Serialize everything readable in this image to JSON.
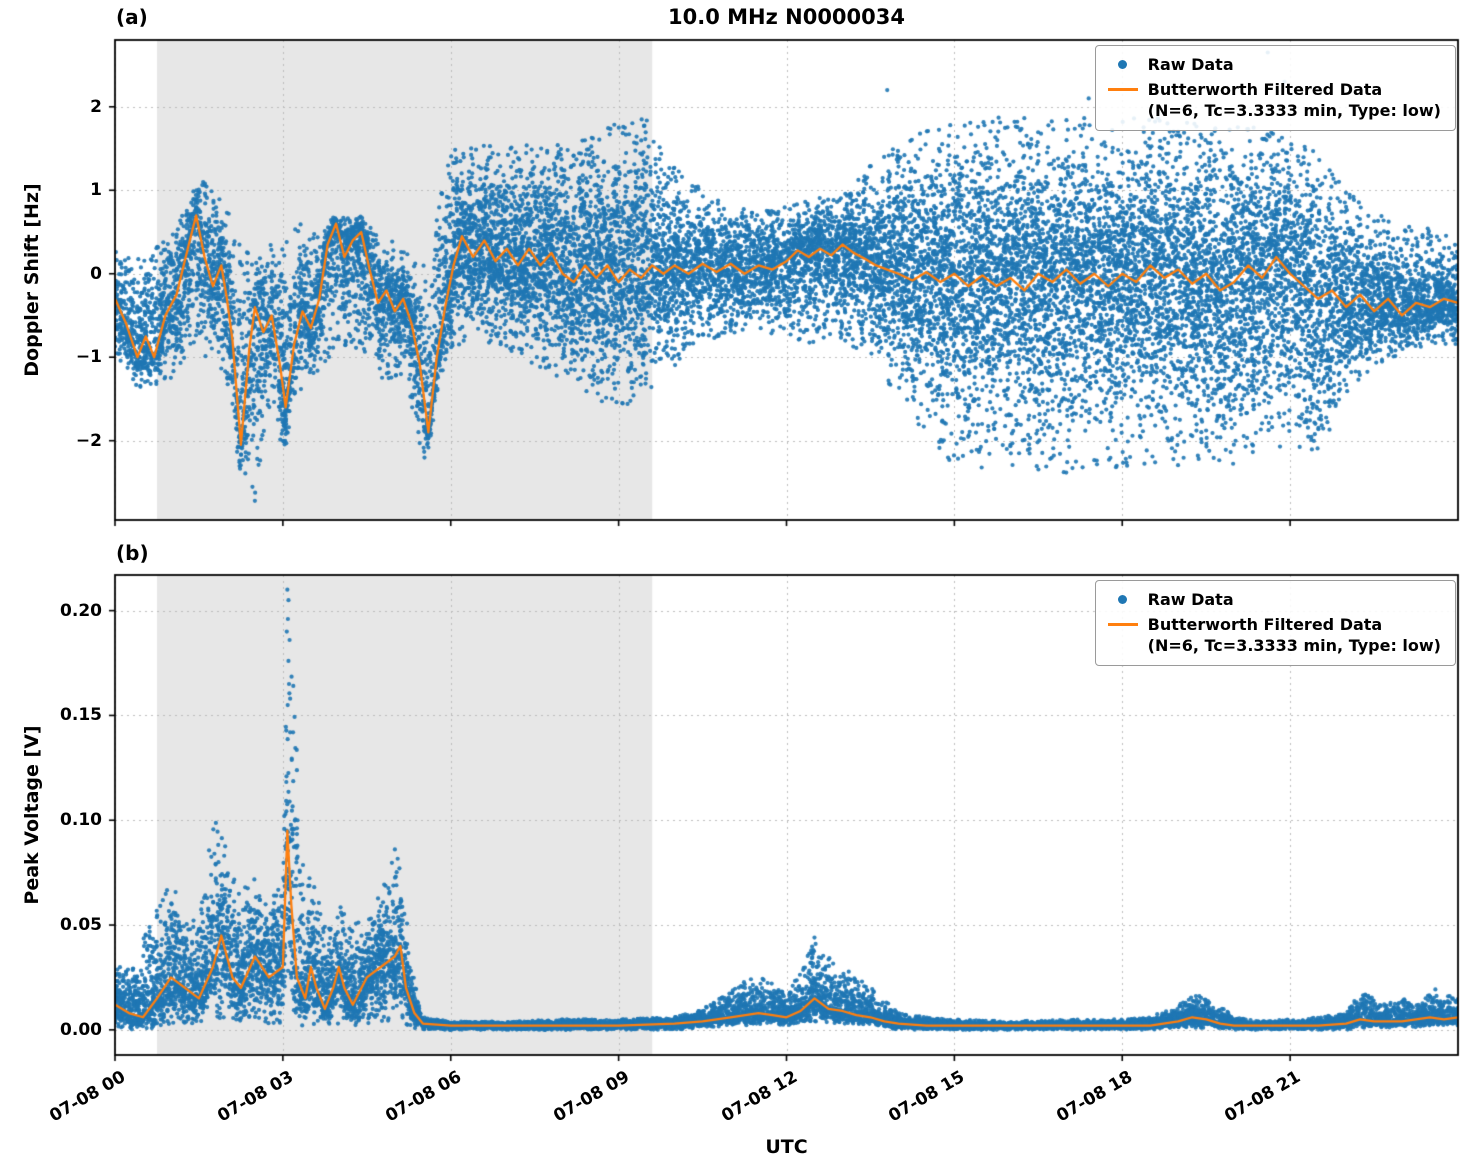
{
  "figure": {
    "title": "10.0 MHz N0000034",
    "panel_a_tag": "(a)",
    "panel_b_tag": "(b)",
    "xlabel": "UTC",
    "background": "#ffffff"
  },
  "colors": {
    "raw": "#1f77b4",
    "filtered": "#ff7f0e",
    "shade": "#e7e7e7",
    "grid": "#bdbdbd",
    "spine": "#000000"
  },
  "legend": {
    "raw_label": "Raw Data",
    "filtered_label": "Butterworth Filtered Data",
    "filtered_sub": "(N=6, Tc=3.3333 min, Type: low)"
  },
  "chart_data": [
    {
      "type": "scatter",
      "panel": "a",
      "title": "10.0 MHz N0000034",
      "xlabel": "UTC",
      "ylabel": "Doppler Shift [Hz]",
      "xlim_hours": [
        0,
        24
      ],
      "ylim": [
        -2.95,
        2.8
      ],
      "x_ticks_hours": [
        0,
        3,
        6,
        9,
        12,
        15,
        18,
        21
      ],
      "x_tick_labels": [
        "07-08 00",
        "07-08 03",
        "07-08 06",
        "07-08 09",
        "07-08 12",
        "07-08 15",
        "07-08 18",
        "07-08 21"
      ],
      "y_ticks": [
        -2,
        -1,
        0,
        1,
        2
      ],
      "y_tick_labels": [
        "−2",
        "−1",
        "0",
        "1",
        "2"
      ],
      "grid": true,
      "legend_position": "upper right",
      "shaded_region_hours": [
        0.75,
        9.6
      ],
      "series": [
        {
          "name": "Raw Data",
          "type": "scatter",
          "marker": "dot",
          "envelope_x_hours": [
            0,
            0.5,
            1.0,
            1.5,
            2.0,
            2.2,
            2.5,
            2.8,
            3.0,
            3.3,
            3.6,
            4.0,
            4.4,
            4.8,
            5.2,
            5.5,
            5.8,
            6.0,
            6.5,
            7.0,
            7.5,
            8.0,
            8.5,
            9.0,
            9.5,
            10.0,
            10.5,
            11.0,
            11.5,
            12.0,
            12.5,
            13.0,
            13.5,
            14.0,
            14.5,
            15.0,
            15.5,
            16.0,
            16.5,
            17.0,
            17.5,
            18.0,
            18.5,
            19.0,
            19.5,
            20.0,
            20.5,
            21.0,
            21.5,
            22.0,
            22.5,
            23.0,
            23.5,
            24.0
          ],
          "envelope_low": [
            -1.0,
            -1.45,
            -1.3,
            -0.9,
            -1.3,
            -2.3,
            -2.75,
            -1.5,
            -2.2,
            -1.4,
            -1.2,
            -0.85,
            -0.9,
            -1.35,
            -1.2,
            -2.45,
            -1.4,
            -0.9,
            -0.8,
            -0.9,
            -1.1,
            -1.3,
            -1.5,
            -1.6,
            -1.5,
            -1.1,
            -0.85,
            -0.75,
            -0.7,
            -0.75,
            -0.85,
            -0.8,
            -1.0,
            -1.5,
            -2.0,
            -2.3,
            -2.4,
            -2.3,
            -2.35,
            -2.4,
            -2.3,
            -2.4,
            -2.3,
            -2.3,
            -2.2,
            -2.3,
            -2.2,
            -2.1,
            -2.2,
            -1.5,
            -1.1,
            -0.95,
            -0.9,
            -0.85
          ],
          "envelope_high": [
            0.35,
            0.15,
            0.55,
            1.2,
            0.8,
            0.4,
            0.15,
            0.45,
            0.35,
            0.6,
            0.5,
            0.75,
            0.7,
            0.45,
            0.3,
            0.15,
            0.9,
            1.5,
            1.6,
            1.5,
            1.6,
            1.55,
            1.7,
            1.8,
            1.9,
            1.3,
            1.0,
            0.8,
            0.75,
            0.8,
            0.9,
            1.0,
            1.3,
            1.6,
            1.75,
            1.8,
            1.9,
            1.85,
            1.9,
            1.85,
            1.9,
            1.85,
            1.9,
            1.85,
            1.8,
            1.8,
            1.75,
            1.6,
            1.5,
            1.0,
            0.75,
            0.6,
            0.55,
            0.4
          ],
          "density": [
            0.7,
            0.7,
            0.75,
            0.75,
            0.7,
            0.7,
            0.7,
            0.7,
            0.7,
            0.7,
            0.7,
            0.75,
            0.75,
            0.7,
            0.7,
            0.7,
            0.8,
            0.9,
            0.95,
            0.95,
            0.95,
            0.95,
            0.95,
            0.95,
            0.9,
            0.8,
            0.75,
            0.7,
            0.7,
            0.75,
            0.8,
            0.8,
            0.85,
            0.95,
            1.0,
            1.0,
            1.0,
            1.0,
            1.0,
            1.0,
            1.0,
            1.0,
            1.0,
            1.0,
            1.0,
            1.0,
            1.0,
            0.95,
            0.9,
            0.8,
            0.75,
            0.75,
            0.75,
            0.75
          ],
          "outliers": [
            [
              13.8,
              2.2
            ],
            [
              20.6,
              2.65
            ],
            [
              20.9,
              2.3
            ],
            [
              17.4,
              2.1
            ],
            [
              2.5,
              -2.72
            ]
          ]
        },
        {
          "name": "Butterworth Filtered Data (N=6, Tc=3.3333 min, Type: low)",
          "type": "line",
          "x_hours": [
            0,
            0.2,
            0.4,
            0.55,
            0.7,
            0.9,
            1.1,
            1.3,
            1.45,
            1.6,
            1.75,
            1.9,
            2.0,
            2.1,
            2.25,
            2.4,
            2.5,
            2.65,
            2.8,
            2.95,
            3.05,
            3.2,
            3.35,
            3.5,
            3.65,
            3.8,
            3.95,
            4.1,
            4.25,
            4.4,
            4.55,
            4.7,
            4.85,
            5.0,
            5.15,
            5.3,
            5.45,
            5.6,
            5.75,
            5.9,
            6.05,
            6.2,
            6.4,
            6.6,
            6.8,
            7.0,
            7.2,
            7.4,
            7.6,
            7.8,
            8.0,
            8.2,
            8.4,
            8.6,
            8.8,
            9.0,
            9.2,
            9.4,
            9.6,
            9.8,
            10.0,
            10.25,
            10.5,
            10.75,
            11.0,
            11.25,
            11.5,
            11.75,
            12.0,
            12.2,
            12.4,
            12.6,
            12.8,
            13.0,
            13.2,
            13.4,
            13.6,
            13.8,
            14.0,
            14.25,
            14.5,
            14.75,
            15.0,
            15.25,
            15.5,
            15.75,
            16.0,
            16.25,
            16.5,
            16.75,
            17.0,
            17.25,
            17.5,
            17.75,
            18.0,
            18.25,
            18.5,
            18.75,
            19.0,
            19.25,
            19.5,
            19.75,
            20.0,
            20.25,
            20.5,
            20.75,
            21.0,
            21.25,
            21.5,
            21.75,
            22.0,
            22.25,
            22.5,
            22.75,
            23.0,
            23.25,
            23.5,
            23.75,
            24.0
          ],
          "y": [
            -0.3,
            -0.6,
            -1.0,
            -0.75,
            -1.0,
            -0.5,
            -0.25,
            0.3,
            0.7,
            0.2,
            -0.15,
            0.1,
            -0.3,
            -0.8,
            -2.05,
            -0.9,
            -0.4,
            -0.7,
            -0.5,
            -1.1,
            -1.6,
            -0.85,
            -0.45,
            -0.65,
            -0.3,
            0.35,
            0.6,
            0.2,
            0.4,
            0.5,
            0.05,
            -0.35,
            -0.2,
            -0.45,
            -0.3,
            -0.6,
            -1.1,
            -1.9,
            -1.0,
            -0.4,
            0.1,
            0.45,
            0.2,
            0.4,
            0.15,
            0.3,
            0.1,
            0.3,
            0.1,
            0.25,
            0.0,
            -0.1,
            0.1,
            -0.05,
            0.1,
            -0.1,
            0.05,
            -0.05,
            0.1,
            0.0,
            0.1,
            0.0,
            0.12,
            0.02,
            0.12,
            0.0,
            0.1,
            0.05,
            0.15,
            0.28,
            0.2,
            0.3,
            0.22,
            0.35,
            0.25,
            0.18,
            0.1,
            0.05,
            0.0,
            -0.08,
            0.02,
            -0.1,
            0.0,
            -0.15,
            -0.02,
            -0.15,
            -0.05,
            -0.2,
            0.0,
            -0.1,
            0.05,
            -0.12,
            0.0,
            -0.15,
            0.0,
            -0.1,
            0.1,
            -0.05,
            0.05,
            -0.12,
            0.0,
            -0.2,
            -0.1,
            0.1,
            -0.05,
            0.2,
            0.0,
            -0.15,
            -0.3,
            -0.2,
            -0.4,
            -0.25,
            -0.45,
            -0.3,
            -0.5,
            -0.35,
            -0.4,
            -0.3,
            -0.35
          ]
        }
      ]
    },
    {
      "type": "scatter",
      "panel": "b",
      "title": "",
      "xlabel": "UTC",
      "ylabel": "Peak Voltage [V]",
      "xlim_hours": [
        0,
        24
      ],
      "ylim": [
        -0.012,
        0.217
      ],
      "x_ticks_hours": [
        0,
        3,
        6,
        9,
        12,
        15,
        18,
        21
      ],
      "x_tick_labels": [
        "07-08 00",
        "07-08 03",
        "07-08 06",
        "07-08 09",
        "07-08 12",
        "07-08 15",
        "07-08 18",
        "07-08 21"
      ],
      "y_ticks": [
        0,
        0.05,
        0.1,
        0.15,
        0.2
      ],
      "y_tick_labels": [
        "0.00",
        "0.05",
        "0.10",
        "0.15",
        "0.20"
      ],
      "grid": true,
      "legend_position": "upper right",
      "shaded_region_hours": [
        0.75,
        9.6
      ],
      "series": [
        {
          "name": "Raw Data",
          "type": "scatter",
          "marker": "dot",
          "envelope_x_hours": [
            0,
            0.3,
            0.6,
            0.8,
            1.0,
            1.2,
            1.5,
            1.75,
            2.0,
            2.25,
            2.5,
            2.75,
            3.0,
            3.1,
            3.2,
            3.35,
            3.5,
            3.75,
            4.0,
            4.25,
            4.5,
            4.75,
            5.0,
            5.15,
            5.3,
            5.5,
            6.0,
            7.0,
            8.0,
            9.0,
            10.0,
            10.5,
            11.0,
            11.3,
            11.6,
            12.0,
            12.3,
            12.5,
            12.75,
            13.0,
            13.3,
            13.6,
            14.0,
            14.5,
            15.0,
            16.0,
            17.0,
            18.0,
            18.5,
            19.0,
            19.3,
            19.6,
            20.0,
            20.5,
            21.0,
            21.5,
            22.0,
            22.3,
            22.6,
            23.0,
            23.3,
            23.6,
            24.0
          ],
          "envelope_low": [
            0.001,
            0.0,
            0.0,
            0.002,
            0.002,
            0.003,
            0.003,
            0.004,
            0.004,
            0.003,
            0.004,
            0.003,
            0.002,
            0.003,
            0.003,
            0.002,
            0.003,
            0.002,
            0.003,
            0.002,
            0.003,
            0.002,
            0.003,
            0.002,
            0.001,
            0.0,
            0.0,
            0.0,
            0.0,
            0.0,
            0.0,
            0.001,
            0.002,
            0.002,
            0.003,
            0.002,
            0.003,
            0.004,
            0.003,
            0.003,
            0.002,
            0.002,
            0.0,
            0.0,
            0.0,
            0.0,
            0.0,
            0.0,
            0.0,
            0.001,
            0.001,
            0.001,
            0.0,
            0.0,
            0.0,
            0.0,
            0.0,
            0.001,
            0.001,
            0.001,
            0.001,
            0.002,
            0.002
          ],
          "envelope_high": [
            0.035,
            0.028,
            0.05,
            0.065,
            0.07,
            0.06,
            0.05,
            0.105,
            0.09,
            0.065,
            0.075,
            0.06,
            0.08,
            0.21,
            0.16,
            0.08,
            0.075,
            0.055,
            0.06,
            0.05,
            0.055,
            0.065,
            0.09,
            0.07,
            0.03,
            0.006,
            0.004,
            0.004,
            0.005,
            0.005,
            0.006,
            0.01,
            0.018,
            0.024,
            0.025,
            0.018,
            0.03,
            0.044,
            0.035,
            0.03,
            0.025,
            0.018,
            0.008,
            0.006,
            0.005,
            0.004,
            0.005,
            0.005,
            0.006,
            0.012,
            0.018,
            0.015,
            0.006,
            0.004,
            0.005,
            0.006,
            0.008,
            0.02,
            0.012,
            0.015,
            0.012,
            0.02,
            0.015
          ],
          "density": [
            1,
            1,
            1,
            1,
            1,
            1,
            1,
            1,
            1,
            1,
            1,
            1,
            1,
            1,
            1,
            1,
            1,
            1,
            1,
            1,
            1,
            1,
            1,
            1,
            0.9,
            0.8,
            0.8,
            0.8,
            0.8,
            0.8,
            0.8,
            0.8,
            0.85,
            0.85,
            0.85,
            0.85,
            0.9,
            0.9,
            0.9,
            0.85,
            0.85,
            0.85,
            0.8,
            0.8,
            0.8,
            0.8,
            0.8,
            0.8,
            0.8,
            0.8,
            0.8,
            0.8,
            0.8,
            0.8,
            0.8,
            0.8,
            0.8,
            0.8,
            0.8,
            0.8,
            0.8,
            0.8,
            0.8
          ],
          "outliers": [
            [
              3.08,
              0.21
            ],
            [
              3.1,
              0.205
            ],
            [
              3.09,
              0.196
            ],
            [
              3.12,
              0.186
            ],
            [
              3.1,
              0.176
            ],
            [
              3.11,
              0.165
            ],
            [
              3.07,
              0.19
            ],
            [
              3.13,
              0.158
            ],
            [
              12.5,
              0.044
            ],
            [
              12.52,
              0.041
            ],
            [
              12.48,
              0.038
            ]
          ]
        },
        {
          "name": "Butterworth Filtered Data (N=6, Tc=3.3333 min, Type: low)",
          "type": "line",
          "x_hours": [
            0,
            0.25,
            0.5,
            0.75,
            1.0,
            1.25,
            1.5,
            1.75,
            1.9,
            2.0,
            2.1,
            2.25,
            2.5,
            2.75,
            3.0,
            3.08,
            3.15,
            3.25,
            3.4,
            3.5,
            3.6,
            3.75,
            3.9,
            4.0,
            4.1,
            4.25,
            4.5,
            4.75,
            5.0,
            5.1,
            5.2,
            5.35,
            5.5,
            6.0,
            7.0,
            8.0,
            9.0,
            10.0,
            10.5,
            11.0,
            11.5,
            11.75,
            12.0,
            12.25,
            12.5,
            12.75,
            13.0,
            13.25,
            13.5,
            13.75,
            14.0,
            14.5,
            15.0,
            16.0,
            17.0,
            18.0,
            18.5,
            19.0,
            19.25,
            19.5,
            19.75,
            20.0,
            20.5,
            21.0,
            21.5,
            22.0,
            22.25,
            22.5,
            23.0,
            23.5,
            23.75,
            24.0
          ],
          "y": [
            0.012,
            0.008,
            0.006,
            0.015,
            0.025,
            0.02,
            0.015,
            0.03,
            0.045,
            0.035,
            0.025,
            0.02,
            0.035,
            0.025,
            0.03,
            0.095,
            0.06,
            0.025,
            0.015,
            0.03,
            0.02,
            0.01,
            0.02,
            0.03,
            0.02,
            0.012,
            0.025,
            0.03,
            0.035,
            0.04,
            0.02,
            0.008,
            0.003,
            0.002,
            0.002,
            0.002,
            0.002,
            0.003,
            0.004,
            0.006,
            0.008,
            0.007,
            0.006,
            0.009,
            0.015,
            0.01,
            0.009,
            0.007,
            0.006,
            0.004,
            0.003,
            0.002,
            0.002,
            0.002,
            0.002,
            0.002,
            0.002,
            0.004,
            0.006,
            0.005,
            0.003,
            0.002,
            0.002,
            0.002,
            0.002,
            0.003,
            0.005,
            0.004,
            0.004,
            0.006,
            0.005,
            0.006
          ]
        }
      ]
    }
  ]
}
